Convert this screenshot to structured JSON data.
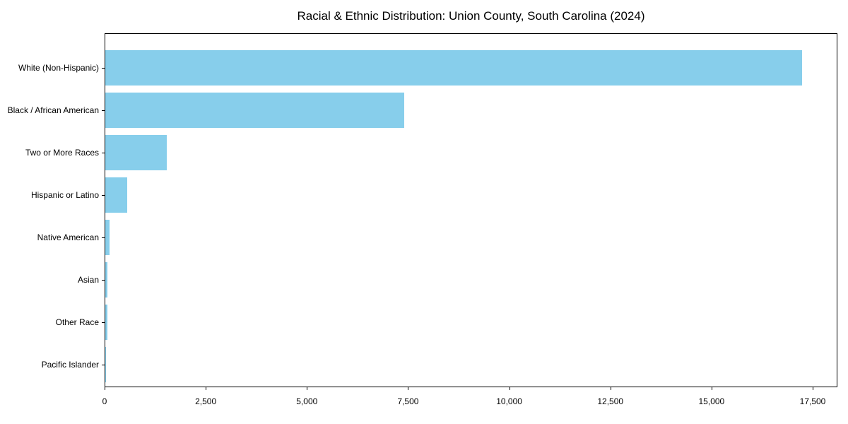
{
  "title": "Racial & Ethnic Distribution: Union County, South Carolina (2024)",
  "colors": {
    "bar": "#87CEEB",
    "spine": "#000000",
    "text": "#000000",
    "background": "#FFFFFF"
  },
  "chart_data": {
    "type": "bar",
    "orientation": "horizontal",
    "title": "Racial & Ethnic Distribution: Union County, South Carolina (2024)",
    "xlabel": "",
    "ylabel": "",
    "categories": [
      "White (Non-Hispanic)",
      "Black / African American",
      "Two or More Races",
      "Hispanic or Latino",
      "Native American",
      "Asian",
      "Other Race",
      "Pacific Islander"
    ],
    "values": [
      17250,
      7400,
      1520,
      550,
      100,
      50,
      45,
      10
    ],
    "xlim": [
      0,
      18111
    ],
    "xticks": [
      0,
      2500,
      5000,
      7500,
      10000,
      12500,
      15000,
      17500
    ],
    "xtick_labels": [
      "0",
      "2,500",
      "5,000",
      "7,500",
      "10,000",
      "12,500",
      "15,000",
      "17,500"
    ],
    "bar_color": "#87CEEB",
    "grid": false,
    "legend": false
  }
}
